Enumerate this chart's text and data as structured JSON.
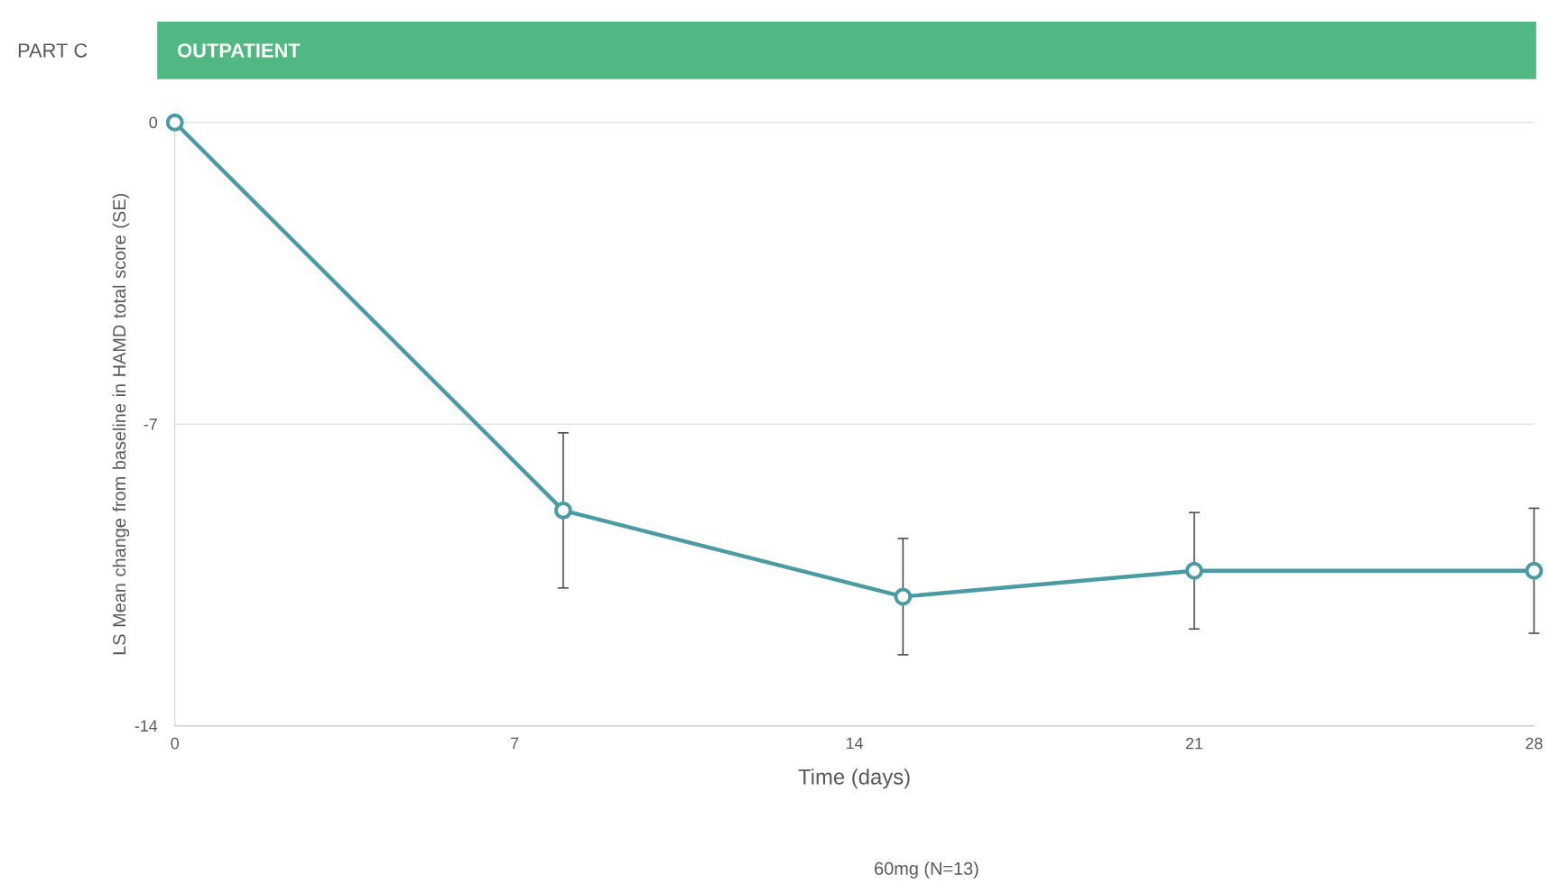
{
  "chart_data": {
    "type": "line",
    "title": "OUTPATIENT",
    "subtitle": "PART C",
    "xlabel": "Time (days)",
    "ylabel": "LS Mean change from baseline in HAMD total score (SE)",
    "annotations": [
      "60mg (N=13)"
    ],
    "x": [
      0,
      8,
      15,
      21,
      28
    ],
    "values": [
      0,
      -9.0,
      -11.0,
      -10.4,
      -10.4
    ],
    "errors": [
      null,
      1.8,
      1.35,
      1.35,
      1.45
    ],
    "color": "#4a9ba3",
    "marker": "circle",
    "grid": "y",
    "xlim": [
      0,
      28
    ],
    "xticks": [
      0,
      7,
      14,
      21,
      28
    ],
    "ylim": [
      -14,
      0
    ],
    "yticks": [
      -14,
      -7,
      0
    ]
  }
}
